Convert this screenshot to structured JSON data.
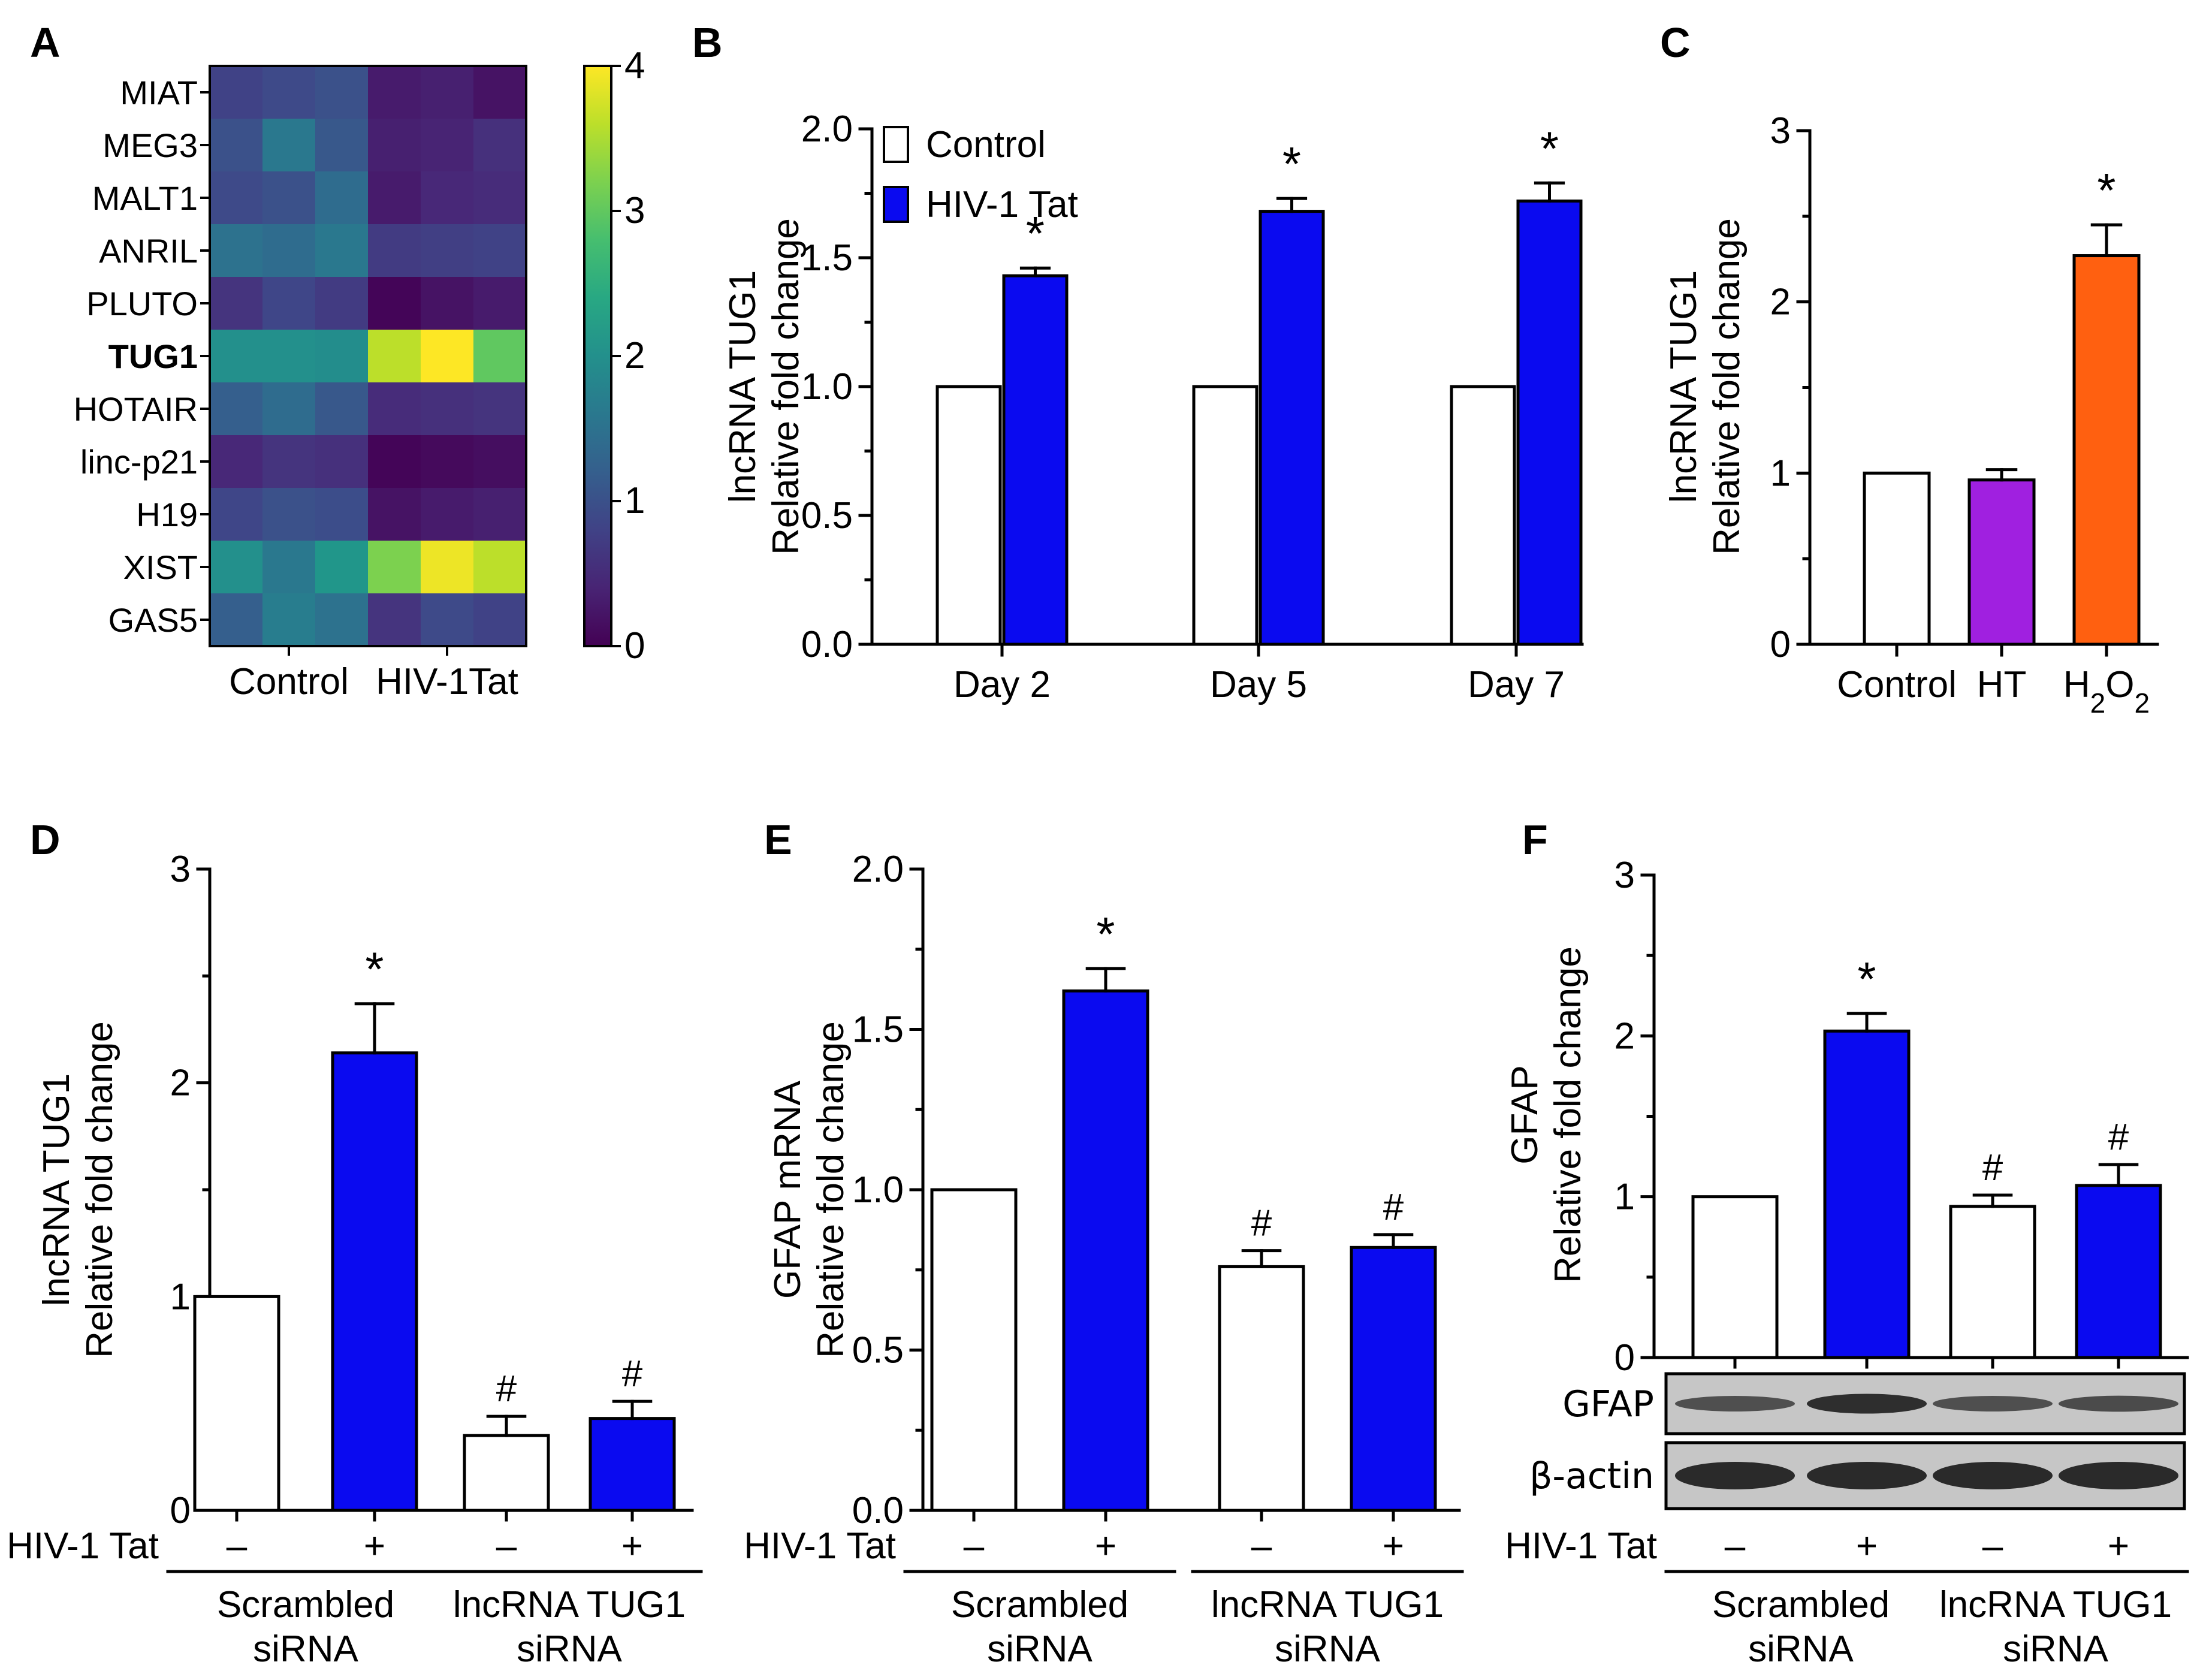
{
  "colors": {
    "control": "#ffffff",
    "tat": "#0a0af0",
    "ht": "#a020e0",
    "h2o2": "#ff6010",
    "axis": "#000000",
    "blot_bg": "#c6c6c6",
    "band": "#222222"
  },
  "chart_data": [
    {
      "panel": "A",
      "type": "heatmap",
      "rows": [
        "MIAT",
        "MEG3",
        "MALT1",
        "ANRIL",
        "PLUTO",
        "TUG1",
        "HOTAIR",
        "linc-p21",
        "H19",
        "XIST",
        "GAS5"
      ],
      "bold_rows": [
        "TUG1"
      ],
      "column_groups": [
        "Control",
        "HIV-1Tat"
      ],
      "values": [
        [
          0.8,
          0.9,
          1.0,
          0.3,
          0.35,
          0.2
        ],
        [
          1.0,
          1.6,
          1.1,
          0.35,
          0.4,
          0.55
        ],
        [
          0.9,
          1.0,
          1.4,
          0.3,
          0.45,
          0.5
        ],
        [
          1.5,
          1.4,
          1.6,
          0.7,
          0.75,
          0.8
        ],
        [
          0.6,
          0.85,
          0.7,
          0.05,
          0.2,
          0.3
        ],
        [
          2.0,
          2.0,
          1.95,
          3.6,
          4.0,
          3.0
        ],
        [
          1.2,
          1.4,
          1.1,
          0.5,
          0.55,
          0.6
        ],
        [
          0.45,
          0.6,
          0.55,
          0.05,
          0.1,
          0.15
        ],
        [
          0.85,
          1.0,
          0.95,
          0.2,
          0.3,
          0.35
        ],
        [
          2.0,
          1.6,
          2.1,
          3.2,
          3.9,
          3.6
        ],
        [
          1.2,
          1.7,
          1.5,
          0.6,
          0.9,
          0.8
        ]
      ],
      "colorbar_ticks": [
        "0",
        "1",
        "2",
        "3",
        "4"
      ],
      "vmin": 0,
      "vmax": 4
    },
    {
      "panel": "B",
      "type": "bar",
      "categories": [
        "Day 2",
        "Day 5",
        "Day 7"
      ],
      "series": [
        {
          "name": "Control",
          "values": [
            1.0,
            1.0,
            1.0
          ],
          "errors": [
            0,
            0,
            0
          ],
          "marks": [
            "",
            "",
            ""
          ]
        },
        {
          "name": "HIV-1 Tat",
          "values": [
            1.43,
            1.68,
            1.72
          ],
          "errors": [
            0.03,
            0.05,
            0.07
          ],
          "marks": [
            "*",
            "*",
            "*"
          ]
        }
      ],
      "ylabel": [
        "lncRNA TUG1",
        "Relative fold change"
      ],
      "ylim": [
        0,
        2.0
      ],
      "yticks": [
        "0.0",
        "0.5",
        "1.0",
        "1.5",
        "2.0"
      ],
      "legend": "top-left"
    },
    {
      "panel": "C",
      "type": "bar",
      "categories": [
        "Control",
        "HT",
        "H2O2"
      ],
      "values": [
        1.0,
        0.96,
        2.27
      ],
      "errors": [
        0,
        0.06,
        0.18
      ],
      "marks": [
        "",
        "",
        "*"
      ],
      "ylabel": [
        "lncRNA TUG1",
        "Relative fold change"
      ],
      "ylim": [
        0,
        3
      ],
      "yticks": [
        "0",
        "1",
        "2",
        "3"
      ]
    },
    {
      "panel": "D",
      "type": "bar",
      "groups": [
        {
          "label": [
            "Scrambled",
            "siRNA"
          ],
          "tat": [
            "–",
            "+"
          ],
          "values": [
            1.0,
            2.14
          ],
          "errors": [
            0,
            0.23
          ],
          "marks": [
            "",
            "*"
          ]
        },
        {
          "label": [
            "lncRNA TUG1",
            "siRNA"
          ],
          "tat": [
            "–",
            "+"
          ],
          "values": [
            0.35,
            0.43
          ],
          "errors": [
            0.09,
            0.08
          ],
          "marks": [
            "#",
            "#"
          ]
        }
      ],
      "treatment_label": "HIV-1 Tat",
      "ylabel": [
        "lncRNA TUG1",
        "Relative fold change"
      ],
      "ylim": [
        0,
        3
      ],
      "yticks": [
        "0",
        "1",
        "2",
        "3"
      ]
    },
    {
      "panel": "E",
      "type": "bar",
      "groups": [
        {
          "label": [
            "Scrambled",
            "siRNA"
          ],
          "tat": [
            "–",
            "+"
          ],
          "values": [
            1.0,
            1.62
          ],
          "errors": [
            0,
            0.07
          ],
          "marks": [
            "",
            "*"
          ]
        },
        {
          "label": [
            "lncRNA TUG1",
            "siRNA"
          ],
          "tat": [
            "–",
            "+"
          ],
          "values": [
            0.76,
            0.82
          ],
          "errors": [
            0.05,
            0.04
          ],
          "marks": [
            "#",
            "#"
          ]
        }
      ],
      "treatment_label": "HIV-1 Tat",
      "ylabel": [
        "GFAP mRNA",
        "Relative fold change"
      ],
      "ylim": [
        0,
        2.0
      ],
      "yticks": [
        "0.0",
        "0.5",
        "1.0",
        "1.5",
        "2.0"
      ]
    },
    {
      "panel": "F",
      "type": "bar",
      "groups": [
        {
          "label": [
            "Scrambled",
            "siRNA"
          ],
          "tat": [
            "–",
            "+"
          ],
          "values": [
            1.0,
            2.03
          ],
          "errors": [
            0,
            0.11
          ],
          "marks": [
            "",
            "*"
          ]
        },
        {
          "label": [
            "lncRNA TUG1",
            "siRNA"
          ],
          "tat": [
            "–",
            "+"
          ],
          "values": [
            0.94,
            1.07
          ],
          "errors": [
            0.07,
            0.13
          ],
          "marks": [
            "#",
            "#"
          ]
        }
      ],
      "treatment_label": "HIV-1 Tat",
      "ylabel": [
        "GFAP",
        "Relative fold change"
      ],
      "ylim": [
        0,
        3
      ],
      "yticks": [
        "0",
        "1",
        "2",
        "3"
      ],
      "blot_labels": [
        "GFAP",
        "β-actin"
      ]
    }
  ]
}
